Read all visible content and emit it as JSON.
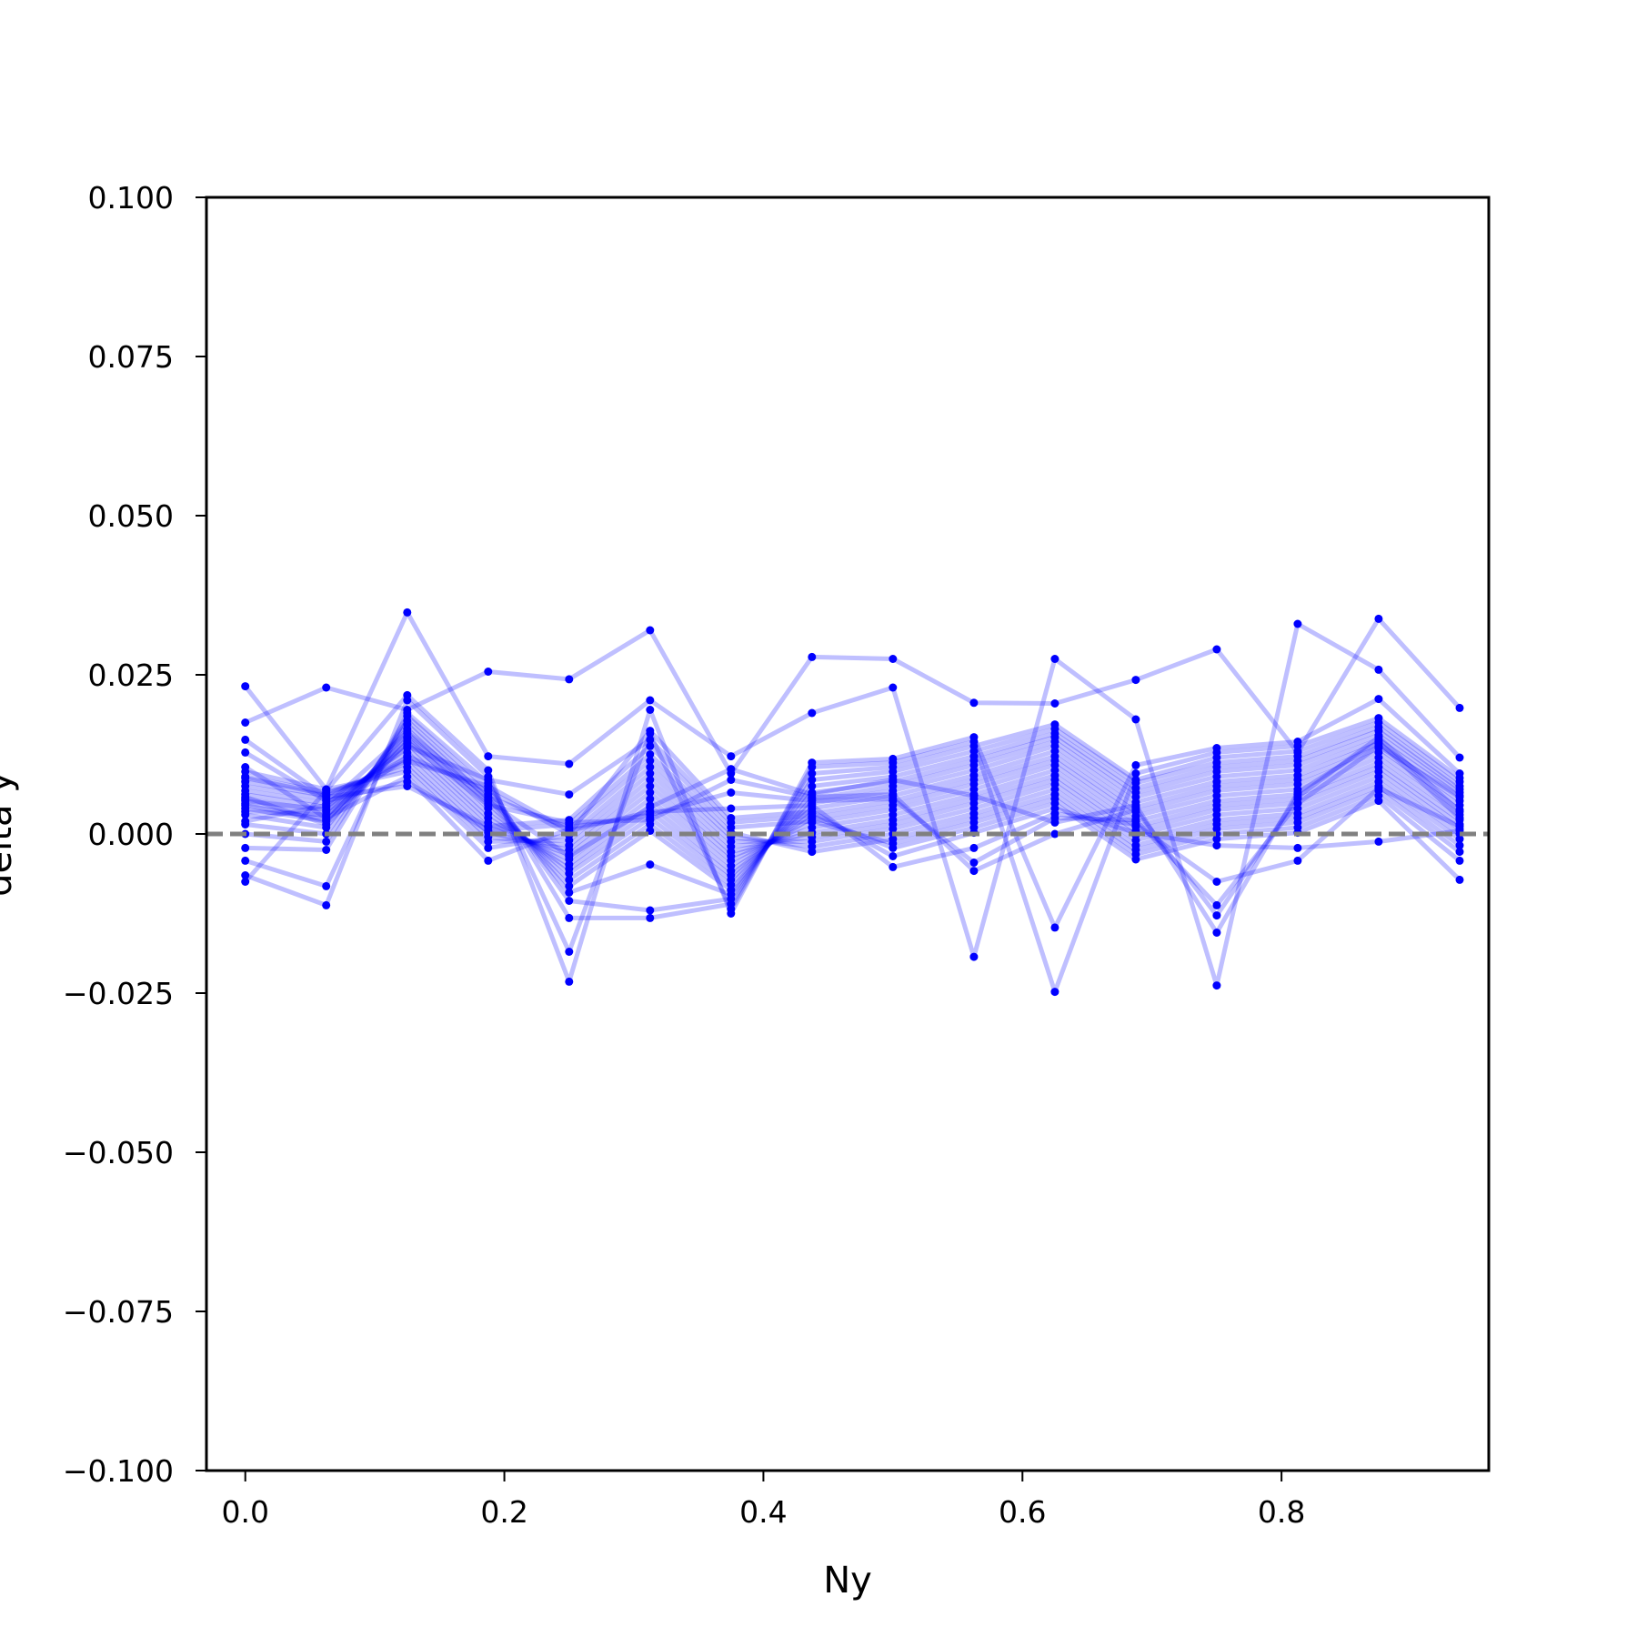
{
  "chart_data": {
    "type": "line",
    "title": "",
    "xlabel": "Ny",
    "ylabel": "delta y",
    "xlim": [
      -0.03,
      0.96
    ],
    "ylim": [
      -0.1,
      0.1
    ],
    "xticks": [
      0.0,
      0.2,
      0.4,
      0.6,
      0.8
    ],
    "xtick_labels": [
      "0.0",
      "0.2",
      "0.4",
      "0.6",
      "0.8"
    ],
    "yticks": [
      0.1,
      0.075,
      0.05,
      0.025,
      0.0,
      -0.025,
      -0.05,
      -0.075,
      -0.1
    ],
    "ytick_labels": [
      "0.100",
      "0.075",
      "0.050",
      "0.025",
      "0.000",
      "−0.025",
      "−0.050",
      "−0.075",
      "−0.100"
    ],
    "grid": false,
    "legend": "none",
    "reference_line": {
      "y": 0.0,
      "style": "dashed",
      "color": "#808080"
    },
    "series_color": "#0000ff",
    "line_alpha": 0.25,
    "x": [
      0.0,
      0.0625,
      0.125,
      0.1875,
      0.25,
      0.3125,
      0.375,
      0.4375,
      0.5,
      0.5625,
      0.625,
      0.6875,
      0.75,
      0.8125,
      0.875,
      0.9375
    ],
    "series": [
      {
        "values": [
          0.0175,
          0.023,
          0.0195,
          0.0255,
          0.0243,
          0.032,
          0.0095,
          0.0278,
          0.0275,
          0.0206,
          0.0205,
          0.0242,
          0.029,
          0.0128,
          0.0338,
          0.0198
        ]
      },
      {
        "values": [
          0.0232,
          0.007,
          0.0348,
          0.0122,
          0.011,
          0.021,
          0.0122,
          0.019,
          0.023,
          -0.0193,
          0.0275,
          0.018,
          -0.0238,
          0.033,
          0.0258,
          0.012
        ]
      },
      {
        "values": [
          -0.0075,
          0.0068,
          0.0218,
          0.01,
          -0.0232,
          0.0195,
          -0.0125,
          0.0112,
          0.0118,
          0.0152,
          -0.0147,
          0.0108,
          0.0135,
          0.0145,
          0.0212,
          0.0095
        ]
      },
      {
        "values": [
          -0.0065,
          -0.0112,
          0.021,
          0.009,
          -0.0185,
          0.0158,
          -0.0118,
          0.0105,
          0.0112,
          0.0145,
          -0.0248,
          0.0095,
          0.0128,
          0.0138,
          0.0182,
          0.0088
        ]
      },
      {
        "values": [
          -0.0042,
          -0.0082,
          0.019,
          0.008,
          -0.0132,
          -0.0132,
          -0.011,
          0.0095,
          0.0105,
          0.0138,
          0.0172,
          0.0085,
          0.012,
          0.013,
          0.0175,
          0.0082
        ]
      },
      {
        "values": [
          -0.0022,
          -0.0025,
          0.0185,
          0.007,
          -0.0105,
          -0.012,
          -0.0102,
          0.0085,
          0.0098,
          0.013,
          0.0165,
          0.008,
          0.0112,
          0.0122,
          0.0168,
          0.0075
        ]
      },
      {
        "values": [
          0.0,
          -0.0012,
          0.0178,
          0.0062,
          -0.0092,
          -0.0048,
          -0.0095,
          0.0075,
          0.009,
          0.0122,
          0.0158,
          0.0072,
          0.0105,
          0.0115,
          0.0162,
          0.007
        ]
      },
      {
        "values": [
          0.0015,
          0.0,
          0.0172,
          0.0055,
          -0.0082,
          0.0005,
          -0.0088,
          0.0065,
          0.0082,
          0.0115,
          0.0152,
          0.0065,
          0.0098,
          0.0108,
          0.0155,
          0.0065
        ]
      },
      {
        "values": [
          0.003,
          0.001,
          0.0165,
          0.0048,
          -0.0072,
          0.0015,
          -0.008,
          0.0055,
          0.0075,
          0.0108,
          0.0145,
          0.0058,
          0.009,
          0.01,
          0.0148,
          0.006
        ]
      },
      {
        "values": [
          0.004,
          0.002,
          0.0158,
          0.004,
          -0.0062,
          0.0025,
          -0.0072,
          0.0048,
          0.0068,
          0.01,
          0.0138,
          0.005,
          0.0082,
          0.0092,
          0.0142,
          0.0052
        ]
      },
      {
        "values": [
          0.0048,
          0.0028,
          0.015,
          0.0032,
          -0.0055,
          0.0035,
          -0.0065,
          0.004,
          0.006,
          0.0092,
          0.013,
          0.0042,
          0.0075,
          0.0085,
          0.0135,
          0.0045
        ]
      },
      {
        "values": [
          0.0055,
          0.0035,
          0.0142,
          0.0025,
          -0.0048,
          0.0045,
          -0.0058,
          0.0032,
          0.0052,
          0.0085,
          0.0122,
          0.0035,
          0.0068,
          0.0078,
          0.0128,
          0.0038
        ]
      },
      {
        "values": [
          0.0062,
          0.0042,
          0.0135,
          0.0018,
          -0.004,
          0.0055,
          -0.005,
          0.0025,
          0.0045,
          0.0078,
          0.0115,
          0.0028,
          0.006,
          0.007,
          0.012,
          0.003
        ]
      },
      {
        "values": [
          0.0068,
          0.0048,
          0.0128,
          0.001,
          -0.0032,
          0.0065,
          -0.0042,
          0.0018,
          0.0038,
          0.007,
          0.0108,
          0.002,
          0.0052,
          0.0062,
          0.0112,
          0.0022
        ]
      },
      {
        "values": [
          0.0075,
          0.0055,
          0.012,
          0.0002,
          -0.0025,
          0.0075,
          -0.0035,
          0.001,
          0.003,
          0.0062,
          0.01,
          0.0012,
          0.0045,
          0.0055,
          0.0105,
          0.0015
        ]
      },
      {
        "values": [
          0.0082,
          0.006,
          0.0112,
          -0.0005,
          -0.0018,
          0.0085,
          -0.0028,
          0.0002,
          0.0022,
          0.0055,
          0.0092,
          0.0005,
          0.0038,
          0.0048,
          0.0098,
          0.0008
        ]
      },
      {
        "values": [
          0.009,
          0.0065,
          0.0105,
          -0.0012,
          -0.001,
          0.0095,
          -0.002,
          -0.0005,
          0.0015,
          0.0048,
          0.0085,
          -0.0002,
          0.003,
          0.004,
          0.009,
          0.0
        ]
      },
      {
        "values": [
          0.0098,
          0.007,
          0.0098,
          -0.0022,
          -0.0002,
          0.0105,
          -0.0012,
          -0.0012,
          0.0008,
          0.004,
          0.0078,
          -0.001,
          0.0022,
          0.0032,
          0.0082,
          -0.0008
        ]
      },
      {
        "values": [
          0.0105,
          0.0025,
          0.009,
          -0.0042,
          0.0008,
          0.0115,
          -0.0005,
          -0.002,
          0.0,
          0.0032,
          0.007,
          -0.0018,
          0.0015,
          0.0025,
          0.0075,
          -0.0018
        ]
      },
      {
        "values": [
          0.0128,
          0.0052,
          0.0082,
          0.0005,
          0.0015,
          0.0125,
          0.0002,
          -0.0028,
          -0.0008,
          0.0025,
          0.0062,
          -0.0025,
          0.0008,
          0.0018,
          0.0068,
          -0.0028
        ]
      },
      {
        "values": [
          0.0148,
          0.0058,
          0.0075,
          0.0012,
          0.0022,
          0.0138,
          0.001,
          0.002,
          -0.0015,
          0.0018,
          0.0055,
          -0.0032,
          0.0,
          0.001,
          0.006,
          -0.0042
        ]
      },
      {
        "values": [
          0.0052,
          0.0038,
          0.0138,
          0.0085,
          0.0062,
          0.0148,
          0.0018,
          0.0028,
          -0.0022,
          0.001,
          0.0048,
          -0.004,
          -0.0008,
          0.0002,
          0.0052,
          -0.0072
        ]
      },
      {
        "values": [
          0.0035,
          0.003,
          0.0122,
          0.0068,
          0.0,
          0.0162,
          0.0025,
          0.0035,
          -0.0035,
          0.0002,
          0.004,
          0.0002,
          -0.0018,
          -0.0022,
          -0.0012,
          0.0005
        ]
      },
      {
        "values": [
          0.0088,
          0.0062,
          0.0115,
          0.0075,
          0.0005,
          0.0035,
          0.004,
          0.0045,
          -0.0052,
          -0.0022,
          0.0032,
          0.0015,
          -0.0075,
          -0.0042,
          0.0072,
          0.0012
        ]
      },
      {
        "values": [
          0.002,
          0.0045,
          0.016,
          0.0058,
          0.001,
          0.003,
          0.0065,
          0.0052,
          0.0055,
          -0.0045,
          0.0025,
          0.0022,
          -0.0112,
          0.0048,
          0.0138,
          0.0058
        ]
      },
      {
        "values": [
          0.0058,
          0.0015,
          0.0145,
          0.0045,
          0.0018,
          0.0022,
          0.0085,
          0.0058,
          0.0062,
          -0.0058,
          0.0,
          0.0038,
          -0.0128,
          0.0058,
          0.0152,
          0.0035
        ]
      },
      {
        "values": [
          0.0045,
          0.0022,
          0.0152,
          0.0052,
          -0.0035,
          0.0042,
          0.0102,
          0.0062,
          0.0085,
          0.006,
          0.0018,
          0.0045,
          -0.0155,
          0.0065,
          0.0145,
          0.0025
        ]
      }
    ]
  }
}
